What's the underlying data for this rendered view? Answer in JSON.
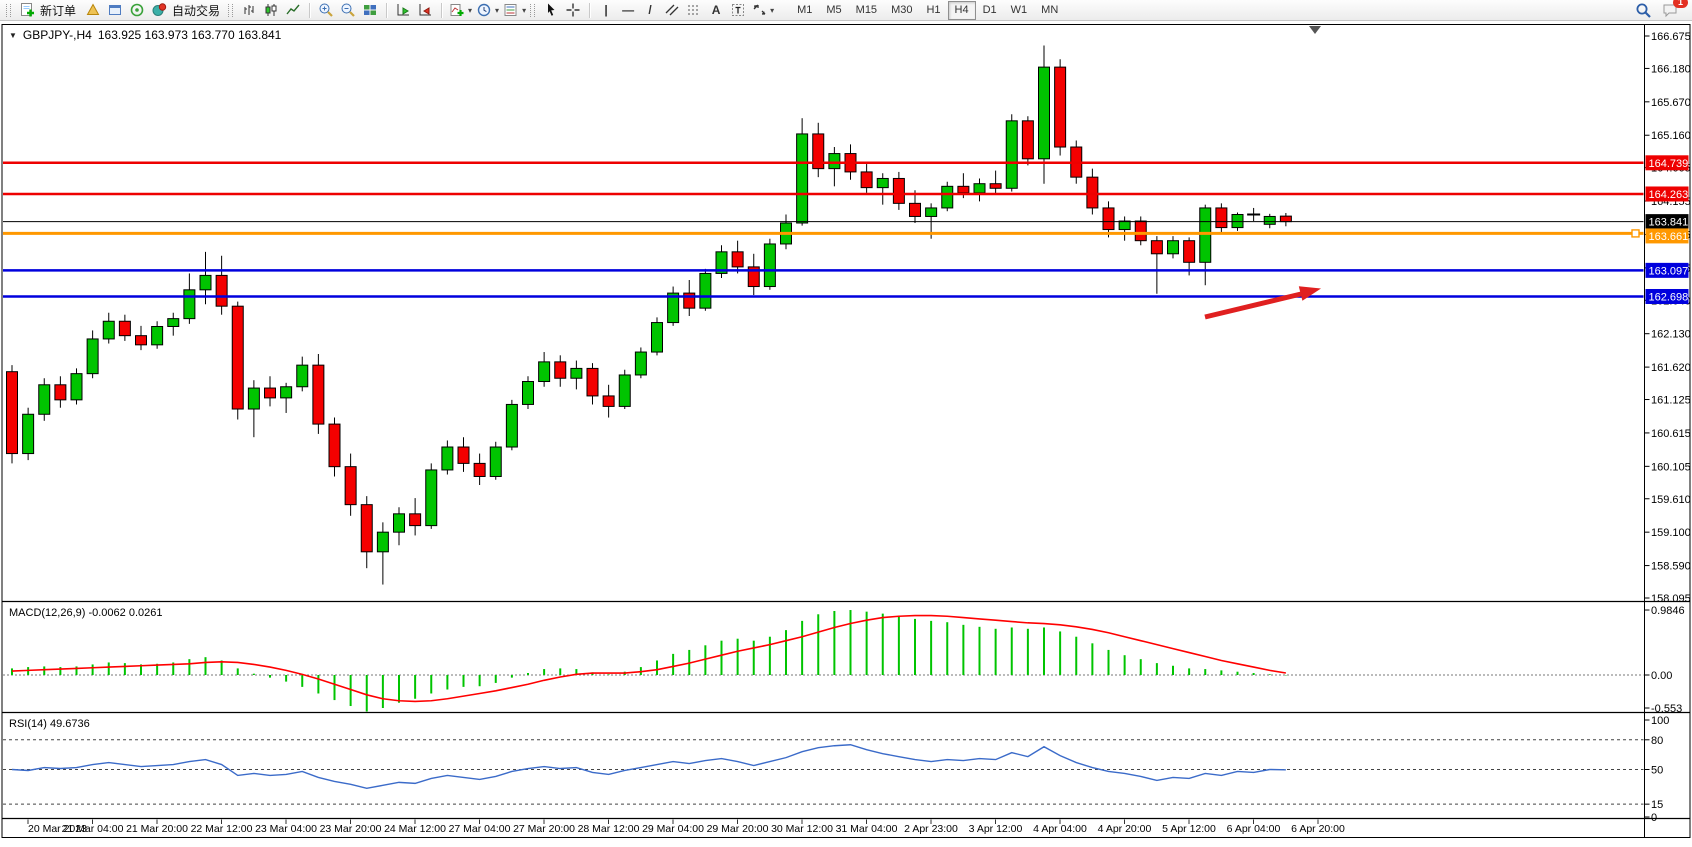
{
  "toolbar": {
    "new_order_label": "新订单",
    "autotrade_label": "自动交易",
    "timeframes": [
      "M1",
      "M5",
      "M15",
      "M30",
      "H1",
      "H4",
      "D1",
      "W1",
      "MN"
    ],
    "active_timeframe": "H4",
    "chat_badge": "1",
    "glyphs": {
      "vline": "|",
      "hline": "—",
      "tline": "/",
      "text": "A",
      "label": "T",
      "caret": "▾",
      "crosshair": "+"
    },
    "icons": [
      "new-order-icon",
      "cone-icon",
      "chart-window-icon",
      "signal-icon",
      "auto-trading-icon",
      "bar-chart-icon",
      "candlestick-chart-icon",
      "line-chart-icon",
      "zoom-in-icon",
      "zoom-out-icon",
      "tile-windows-icon",
      "auto-scroll-icon",
      "chart-shift-icon",
      "add-indicator-icon",
      "periods-icon",
      "templates-icon",
      "cursor-icon",
      "crosshair-icon",
      "vertical-line-icon",
      "horizontal-line-icon",
      "trendline-icon",
      "equidistant-channel-icon",
      "fibonacci-icon",
      "text-icon",
      "text-label-icon",
      "arrows-icon",
      "search-icon",
      "chat-icon"
    ]
  },
  "chart": {
    "title_symbol": "GBPJPY-,H4",
    "title_ohlc": "163.925 163.973 163.770 163.841",
    "open": "163.925",
    "high": "163.973",
    "low": "163.770",
    "close": "163.841"
  },
  "price_axis": {
    "ticks": [
      "166.675",
      "166.180",
      "165.670",
      "165.160",
      "164.665",
      "164.155",
      "163.645",
      "163.135",
      "162.640",
      "162.130",
      "161.620",
      "161.125",
      "160.615",
      "160.105",
      "159.610",
      "159.100",
      "158.590",
      "158.095"
    ]
  },
  "hlines": [
    {
      "price": 164.739,
      "label": "164.739",
      "color": "#EE0000",
      "width": 2.5
    },
    {
      "price": 164.263,
      "label": "164.263",
      "color": "#EE0000",
      "width": 2.5
    },
    {
      "price": 163.841,
      "label": "163.841",
      "color": "#000000",
      "width": 1
    },
    {
      "price": 163.661,
      "label": "163.661",
      "color": "#FF9800",
      "width": 3
    },
    {
      "price": 163.097,
      "label": "163.097",
      "color": "#0000DD",
      "width": 2.5
    },
    {
      "price": 162.698,
      "label": "162.698",
      "color": "#0000DD",
      "width": 2.5
    }
  ],
  "macd": {
    "label": "MACD(12,26,9) -0.0062 0.0261",
    "axis": [
      "0.9846",
      "0.00",
      "-0.553"
    ]
  },
  "rsi": {
    "label": "RSI(14) 49.6736",
    "axis": [
      "100",
      "80",
      "50",
      "15",
      "0"
    ],
    "levels": [
      80,
      50,
      15
    ]
  },
  "time_axis": {
    "labels": [
      "20 Mar 2023",
      "21 Mar 04:00",
      "21 Mar 20:00",
      "22 Mar 12:00",
      "23 Mar 04:00",
      "23 Mar 20:00",
      "24 Mar 12:00",
      "27 Mar 04:00",
      "27 Mar 20:00",
      "28 Mar 12:00",
      "29 Mar 04:00",
      "29 Mar 20:00",
      "30 Mar 12:00",
      "31 Mar 04:00",
      "2 Apr 23:00",
      "3 Apr 12:00",
      "4 Apr 04:00",
      "4 Apr 20:00",
      "5 Apr 12:00",
      "6 Apr 04:00",
      "6 Apr 20:00"
    ]
  },
  "annotation_arrow": {
    "color": "#E02020"
  },
  "chart_data": {
    "type": "candlestick",
    "symbol": "GBPJPY",
    "timeframe": "H4",
    "title": "GBPJPY-,H4 163.925 163.973 163.770 163.841",
    "ylim": [
      158.095,
      166.675
    ],
    "levels": [
      164.739,
      164.263,
      163.841,
      163.661,
      163.097,
      162.698
    ],
    "colors": {
      "up": "#00C400",
      "down": "#F40000",
      "wick": "#000000",
      "macd_hist": "#00C400",
      "macd_signal": "#FF0000",
      "rsi_line": "#3B6BC9"
    },
    "x_labels": [
      "20 Mar 2023",
      "21 Mar 04:00",
      "21 Mar 20:00",
      "22 Mar 12:00",
      "23 Mar 04:00",
      "23 Mar 20:00",
      "24 Mar 12:00",
      "27 Mar 04:00",
      "27 Mar 20:00",
      "28 Mar 12:00",
      "29 Mar 04:00",
      "29 Mar 20:00",
      "30 Mar 12:00",
      "31 Mar 04:00",
      "2 Apr 23:00",
      "3 Apr 12:00",
      "4 Apr 04:00",
      "4 Apr 20:00",
      "5 Apr 12:00",
      "6 Apr 04:00",
      "6 Apr 20:00"
    ],
    "ohlc": [
      [
        161.55,
        161.65,
        160.15,
        160.3
      ],
      [
        160.3,
        161.0,
        160.2,
        160.9
      ],
      [
        160.9,
        161.45,
        160.8,
        161.35
      ],
      [
        161.35,
        161.48,
        161.0,
        161.12
      ],
      [
        161.12,
        161.6,
        161.05,
        161.52
      ],
      [
        161.52,
        162.18,
        161.45,
        162.05
      ],
      [
        162.05,
        162.45,
        161.98,
        162.32
      ],
      [
        162.32,
        162.42,
        162.02,
        162.1
      ],
      [
        162.1,
        162.25,
        161.88,
        161.96
      ],
      [
        161.96,
        162.32,
        161.9,
        162.24
      ],
      [
        162.24,
        162.45,
        162.1,
        162.36
      ],
      [
        162.36,
        163.05,
        162.28,
        162.8
      ],
      [
        162.8,
        163.38,
        162.58,
        163.02
      ],
      [
        163.02,
        163.32,
        162.42,
        162.55
      ],
      [
        162.55,
        162.62,
        160.82,
        160.98
      ],
      [
        160.98,
        161.42,
        160.55,
        161.3
      ],
      [
        161.3,
        161.48,
        161.02,
        161.15
      ],
      [
        161.15,
        161.38,
        160.92,
        161.32
      ],
      [
        161.32,
        161.78,
        161.25,
        161.65
      ],
      [
        161.65,
        161.82,
        160.6,
        160.75
      ],
      [
        160.75,
        160.85,
        159.95,
        160.1
      ],
      [
        160.1,
        160.3,
        159.35,
        159.52
      ],
      [
        159.52,
        159.65,
        158.55,
        158.8
      ],
      [
        158.8,
        159.25,
        158.3,
        159.1
      ],
      [
        159.1,
        159.48,
        158.9,
        159.38
      ],
      [
        159.38,
        159.62,
        159.05,
        159.2
      ],
      [
        159.2,
        160.15,
        159.15,
        160.05
      ],
      [
        160.05,
        160.5,
        159.98,
        160.4
      ],
      [
        160.4,
        160.55,
        160.02,
        160.15
      ],
      [
        160.15,
        160.3,
        159.82,
        159.95
      ],
      [
        159.95,
        160.48,
        159.9,
        160.4
      ],
      [
        160.4,
        161.12,
        160.35,
        161.05
      ],
      [
        161.05,
        161.48,
        160.98,
        161.4
      ],
      [
        161.4,
        161.85,
        161.32,
        161.7
      ],
      [
        161.7,
        161.8,
        161.32,
        161.45
      ],
      [
        161.45,
        161.72,
        161.28,
        161.6
      ],
      [
        161.6,
        161.68,
        161.05,
        161.18
      ],
      [
        161.18,
        161.35,
        160.85,
        161.02
      ],
      [
        161.02,
        161.58,
        160.98,
        161.5
      ],
      [
        161.5,
        161.92,
        161.45,
        161.85
      ],
      [
        161.85,
        162.38,
        161.8,
        162.3
      ],
      [
        162.3,
        162.85,
        162.25,
        162.75
      ],
      [
        162.75,
        162.95,
        162.4,
        162.52
      ],
      [
        162.52,
        163.12,
        162.48,
        163.05
      ],
      [
        163.05,
        163.48,
        162.98,
        163.38
      ],
      [
        163.38,
        163.55,
        163.05,
        163.15
      ],
      [
        163.15,
        163.35,
        162.72,
        162.85
      ],
      [
        162.85,
        163.58,
        162.8,
        163.5
      ],
      [
        163.5,
        163.95,
        163.42,
        163.82
      ],
      [
        163.82,
        165.42,
        163.78,
        165.18
      ],
      [
        165.18,
        165.35,
        164.52,
        164.65
      ],
      [
        164.65,
        164.98,
        164.38,
        164.88
      ],
      [
        164.88,
        165.02,
        164.48,
        164.6
      ],
      [
        164.6,
        164.72,
        164.28,
        164.36
      ],
      [
        164.36,
        164.58,
        164.1,
        164.5
      ],
      [
        164.5,
        164.6,
        164.02,
        164.12
      ],
      [
        164.12,
        164.32,
        163.82,
        163.92
      ],
      [
        163.92,
        164.12,
        163.58,
        164.05
      ],
      [
        164.05,
        164.45,
        164.0,
        164.38
      ],
      [
        164.38,
        164.58,
        164.2,
        164.28
      ],
      [
        164.28,
        164.5,
        164.15,
        164.42
      ],
      [
        164.42,
        164.62,
        164.25,
        164.35
      ],
      [
        164.35,
        165.48,
        164.3,
        165.38
      ],
      [
        165.38,
        165.45,
        164.7,
        164.8
      ],
      [
        164.8,
        166.53,
        164.42,
        166.2
      ],
      [
        166.2,
        166.32,
        164.85,
        164.98
      ],
      [
        164.98,
        165.08,
        164.42,
        164.52
      ],
      [
        164.52,
        164.65,
        163.95,
        164.05
      ],
      [
        164.05,
        164.15,
        163.6,
        163.72
      ],
      [
        163.72,
        163.92,
        163.55,
        163.85
      ],
      [
        163.85,
        163.92,
        163.48,
        163.55
      ],
      [
        163.55,
        163.62,
        162.74,
        163.35
      ],
      [
        163.35,
        163.62,
        163.28,
        163.55
      ],
      [
        163.55,
        163.6,
        163.02,
        163.22
      ],
      [
        163.22,
        164.1,
        162.87,
        164.05
      ],
      [
        164.05,
        164.12,
        163.68,
        163.75
      ],
      [
        163.75,
        163.98,
        163.7,
        163.95
      ],
      [
        163.95,
        164.05,
        163.85,
        163.95
      ],
      [
        163.8,
        163.96,
        163.74,
        163.92
      ],
      [
        163.925,
        163.973,
        163.77,
        163.841
      ]
    ],
    "indicators": {
      "macd": {
        "params": "12,26,9",
        "main_last": -0.0062,
        "signal_last": 0.0261,
        "range": [
          -0.553,
          0.9846
        ],
        "histogram": [
          0.1,
          0.12,
          0.13,
          0.12,
          0.13,
          0.16,
          0.19,
          0.18,
          0.16,
          0.17,
          0.19,
          0.24,
          0.27,
          0.22,
          0.1,
          0.02,
          -0.04,
          -0.1,
          -0.18,
          -0.28,
          -0.38,
          -0.47,
          -0.553,
          -0.5,
          -0.42,
          -0.36,
          -0.28,
          -0.22,
          -0.18,
          -0.17,
          -0.12,
          -0.04,
          0.03,
          0.09,
          0.1,
          0.09,
          0.04,
          0.01,
          0.05,
          0.12,
          0.22,
          0.32,
          0.38,
          0.45,
          0.52,
          0.55,
          0.52,
          0.58,
          0.68,
          0.82,
          0.92,
          0.97,
          0.9846,
          0.96,
          0.93,
          0.9,
          0.85,
          0.82,
          0.8,
          0.76,
          0.73,
          0.7,
          0.72,
          0.7,
          0.72,
          0.66,
          0.58,
          0.48,
          0.38,
          0.3,
          0.24,
          0.18,
          0.14,
          0.1,
          0.09,
          0.07,
          0.05,
          0.03,
          0.01,
          -0.006
        ],
        "signal": [
          0.06,
          0.07,
          0.08,
          0.09,
          0.1,
          0.11,
          0.12,
          0.13,
          0.14,
          0.15,
          0.16,
          0.17,
          0.19,
          0.2,
          0.19,
          0.16,
          0.12,
          0.07,
          0.01,
          -0.06,
          -0.14,
          -0.22,
          -0.3,
          -0.36,
          -0.39,
          -0.4,
          -0.39,
          -0.36,
          -0.32,
          -0.28,
          -0.24,
          -0.19,
          -0.14,
          -0.08,
          -0.03,
          0.01,
          0.03,
          0.03,
          0.03,
          0.05,
          0.08,
          0.13,
          0.18,
          0.24,
          0.3,
          0.36,
          0.41,
          0.46,
          0.52,
          0.58,
          0.65,
          0.72,
          0.78,
          0.83,
          0.87,
          0.89,
          0.9,
          0.9,
          0.89,
          0.87,
          0.85,
          0.83,
          0.81,
          0.79,
          0.78,
          0.76,
          0.73,
          0.69,
          0.64,
          0.58,
          0.52,
          0.46,
          0.4,
          0.34,
          0.28,
          0.22,
          0.17,
          0.12,
          0.07,
          0.03
        ]
      },
      "rsi": {
        "period": 14,
        "last": 49.6736,
        "values": [
          50,
          49,
          52,
          51,
          52,
          55,
          57,
          55,
          53,
          54,
          55,
          58,
          60,
          55,
          44,
          46,
          44,
          45,
          48,
          42,
          38,
          35,
          31,
          34,
          37,
          36,
          41,
          44,
          42,
          40,
          43,
          48,
          51,
          53,
          51,
          52,
          47,
          45,
          49,
          52,
          55,
          58,
          56,
          59,
          61,
          58,
          54,
          58,
          62,
          68,
          72,
          74,
          75,
          70,
          66,
          63,
          60,
          58,
          60,
          59,
          61,
          60,
          67,
          63,
          73,
          64,
          57,
          52,
          48,
          46,
          43,
          39,
          42,
          41,
          46,
          44,
          48,
          47,
          50,
          49.67
        ]
      }
    }
  }
}
